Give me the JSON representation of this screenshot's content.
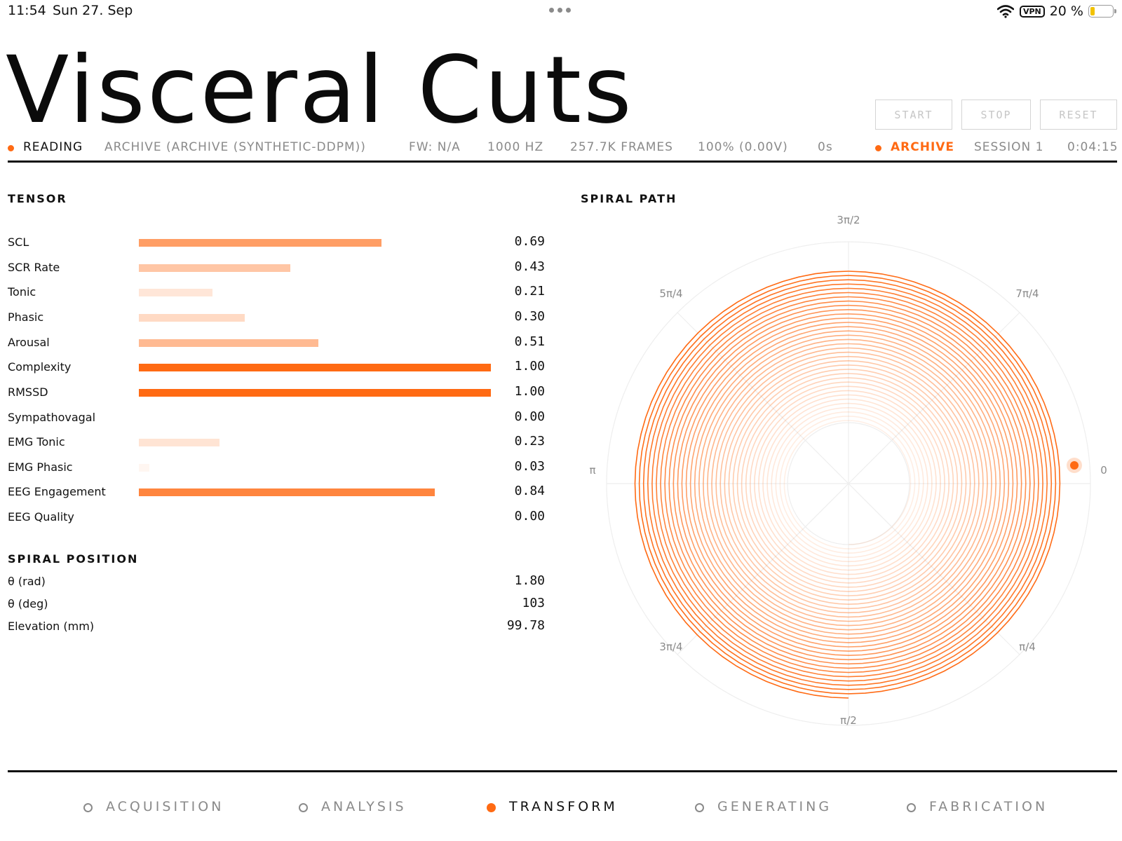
{
  "status_bar": {
    "time": "11:54",
    "date": "Sun 27. Sep",
    "vpn": "VPN",
    "battery_pct": "20 %",
    "battery_level": 0.2
  },
  "title": "Visceral Cuts",
  "controls": {
    "start": "START",
    "stop": "STOP",
    "reset": "RESET"
  },
  "info": {
    "reading": "READING",
    "source": "ARCHIVE (ARCHIVE (SYNTHETIC-DDPM))",
    "firmware": "FW: N/A",
    "rate": "1000 HZ",
    "frames": "257.7K FRAMES",
    "signal": "100% (0.00V)",
    "elapsed": "0s",
    "mode": "ARCHIVE",
    "session": "SESSION 1",
    "clock": "0:04:15"
  },
  "tensor": {
    "title": "TENSOR",
    "metrics": [
      {
        "label": "SCL",
        "value": "0.69"
      },
      {
        "label": "SCR Rate",
        "value": "0.43"
      },
      {
        "label": "Tonic",
        "value": "0.21"
      },
      {
        "label": "Phasic",
        "value": "0.30"
      },
      {
        "label": "Arousal",
        "value": "0.51"
      },
      {
        "label": "Complexity",
        "value": "1.00"
      },
      {
        "label": "RMSSD",
        "value": "1.00"
      },
      {
        "label": "Sympathovagal",
        "value": "0.00"
      },
      {
        "label": "EMG Tonic",
        "value": "0.23"
      },
      {
        "label": "EMG Phasic",
        "value": "0.03"
      },
      {
        "label": "EEG Engagement",
        "value": "0.84"
      },
      {
        "label": "EEG Quality",
        "value": "0.00"
      }
    ]
  },
  "spiral_position": {
    "title": "SPIRAL POSITION",
    "rows": [
      {
        "label": "θ (rad)",
        "value": "1.80"
      },
      {
        "label": "θ (deg)",
        "value": "103"
      },
      {
        "label": "Elevation (mm)",
        "value": "99.78"
      }
    ]
  },
  "spiral_path": {
    "title": "SPIRAL PATH",
    "angle_labels": {
      "top": "3π/2",
      "top_left": "5π/4",
      "top_right": "7π/4",
      "left": "π",
      "right": "0",
      "bottom_left": "3π/4",
      "bottom_right": "π/4",
      "bottom": "π/2"
    },
    "accent_color": "#ff6a13"
  },
  "pipeline": {
    "stages": [
      {
        "label": "ACQUISITION",
        "active": false
      },
      {
        "label": "ANALYSIS",
        "active": false
      },
      {
        "label": "TRANSFORM",
        "active": true
      },
      {
        "label": "GENERATING",
        "active": false
      },
      {
        "label": "FABRICATION",
        "active": false
      }
    ]
  }
}
